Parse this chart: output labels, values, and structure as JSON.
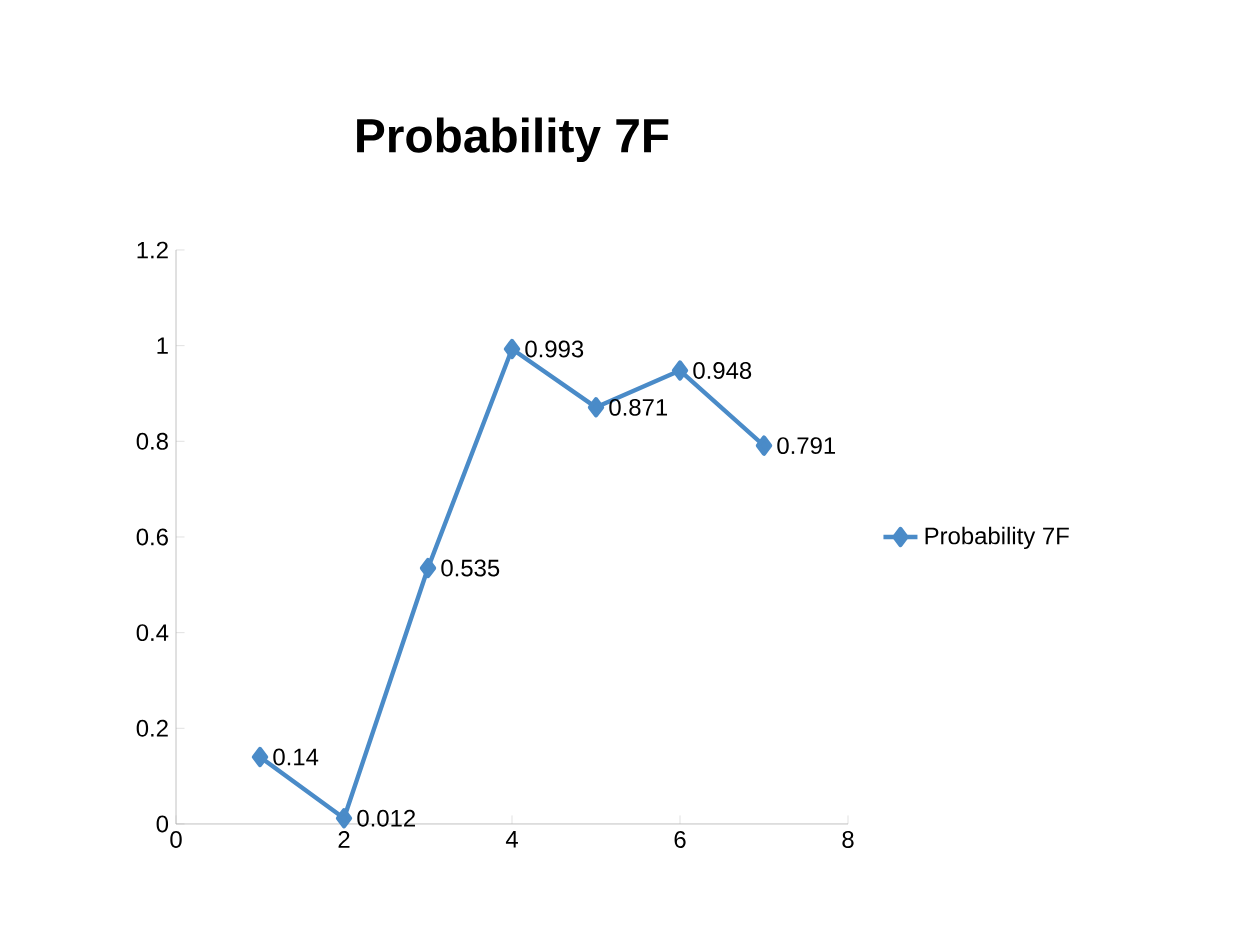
{
  "chart_data": {
    "type": "line",
    "title": "Probability 7F",
    "x": [
      1,
      2,
      3,
      4,
      5,
      6,
      7
    ],
    "series": [
      {
        "name": "Probability 7F",
        "color": "#4a8bc8",
        "values": [
          0.14,
          0.012,
          0.535,
          0.993,
          0.871,
          0.948,
          0.791
        ]
      }
    ],
    "xlim": [
      0,
      8
    ],
    "xticks": [
      0,
      2,
      4,
      6,
      8
    ],
    "ylim": [
      0,
      1.2
    ],
    "yticks": [
      0,
      0.2,
      0.4,
      0.6,
      0.8,
      1,
      1.2
    ],
    "data_labels": true,
    "grid": false,
    "legend": "right",
    "marker": "diamond",
    "line_style": "solid"
  }
}
